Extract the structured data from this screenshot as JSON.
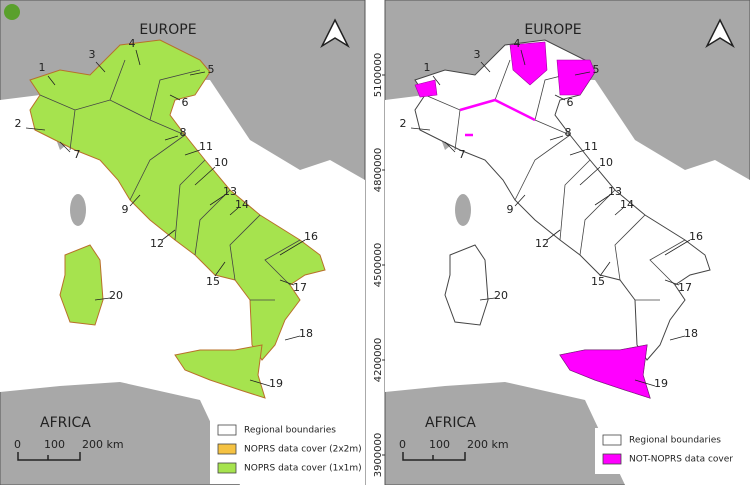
{
  "panels": [
    {
      "title": "EUROPE",
      "south_label": "AFRICA",
      "region_labels": [
        "1",
        "2",
        "3",
        "4",
        "5",
        "6",
        "7",
        "8",
        "9",
        "10",
        "11",
        "12",
        "13",
        "14",
        "15",
        "16",
        "17",
        "18",
        "19",
        "20"
      ],
      "legend": [
        "Regional boundaries",
        "NOPRS data cover (2x2m)",
        "NOPRS data cover (1x1m)"
      ],
      "scale": [
        "0",
        "100",
        "200 km"
      ]
    },
    {
      "title": "EUROPE",
      "south_label": "AFRICA",
      "region_labels": [
        "1",
        "2",
        "3",
        "4",
        "5",
        "6",
        "7",
        "8",
        "9",
        "10",
        "11",
        "12",
        "13",
        "14",
        "15",
        "16",
        "17",
        "18",
        "19",
        "20"
      ],
      "legend": [
        "Regional boundaries",
        "NOT-NOPRS data cover"
      ],
      "scale": [
        "0",
        "100",
        "200 km"
      ],
      "y_ticks": [
        5100000,
        4800000,
        4500000,
        4200000,
        3900000
      ]
    }
  ]
}
